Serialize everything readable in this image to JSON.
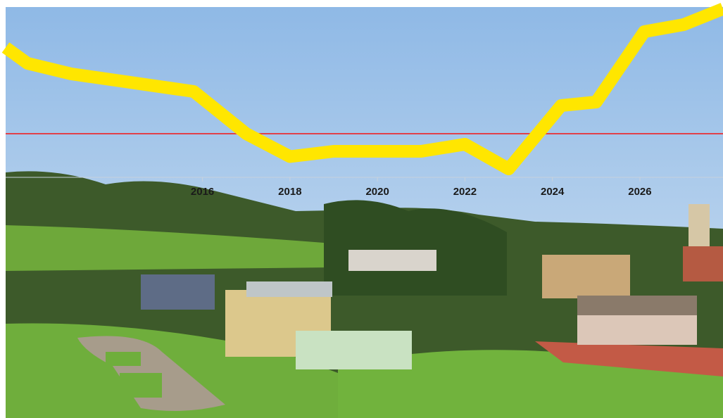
{
  "chart_data": {
    "type": "line",
    "x": [
      2011.5,
      2012,
      2013,
      2015.8,
      2017,
      2018,
      2019,
      2021,
      2022,
      2023,
      2024.2,
      2025,
      2026.1,
      2027,
      2027.9
    ],
    "series": [
      {
        "color": "#ffe600",
        "values": [
          73,
          64,
          58,
          48,
          24,
          11,
          14,
          14,
          18,
          4,
          40,
          42,
          82,
          86,
          95
        ]
      }
    ],
    "reference_line": {
      "value": 24,
      "color": "#e0404a"
    },
    "xlim": [
      2011.5,
      2027.9
    ],
    "xticks": [
      2016,
      2018,
      2020,
      2022,
      2024,
      2026
    ],
    "ylim": [
      0,
      100
    ]
  }
}
